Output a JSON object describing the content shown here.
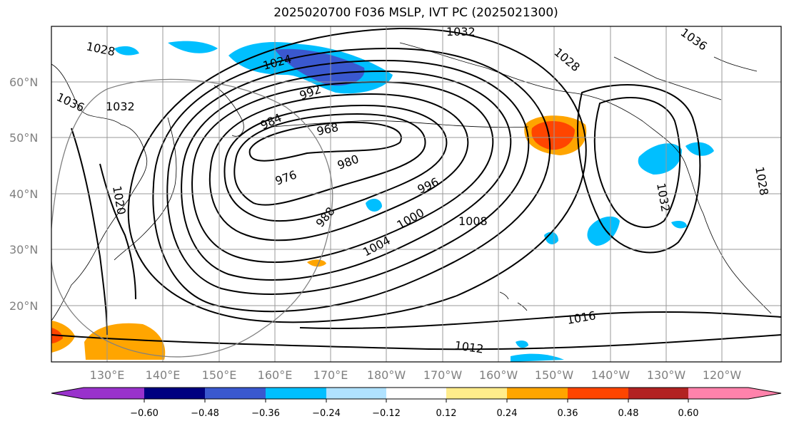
{
  "title": "2025020700 F036 MSLP, IVT PC (2025021300)",
  "map": {
    "latitude_labels": [
      "60°N",
      "50°N",
      "40°N",
      "30°N",
      "20°N"
    ],
    "longitude_labels": [
      "130°E",
      "140°E",
      "150°E",
      "160°E",
      "170°E",
      "180°W",
      "170°W",
      "160°W",
      "150°W",
      "140°W",
      "130°W",
      "120°W"
    ],
    "isobar_labels": [
      "1028",
      "1032",
      "1036",
      "1024",
      "1036",
      "1032",
      "1028",
      "992",
      "984",
      "968",
      "980",
      "976",
      "996",
      "1000",
      "988",
      "1004",
      "1008",
      "1020",
      "1016",
      "1012",
      "1032",
      "1028"
    ]
  },
  "colorbar": {
    "tick_labels": [
      "−0.60",
      "−0.48",
      "−0.36",
      "−0.24",
      "−0.12",
      "0.12",
      "0.24",
      "0.36",
      "0.48",
      "0.60"
    ],
    "colors": [
      "#9932cc",
      "#000080",
      "#3a58cf",
      "#00bfff",
      "#b0e2ff",
      "#ffffff",
      "#ffec8b",
      "#ffa500",
      "#ff4500",
      "#b22222",
      "#ff82ab"
    ]
  },
  "colors": {
    "grid": "#999999",
    "coastline": "#000000",
    "isobar": "#000000"
  }
}
